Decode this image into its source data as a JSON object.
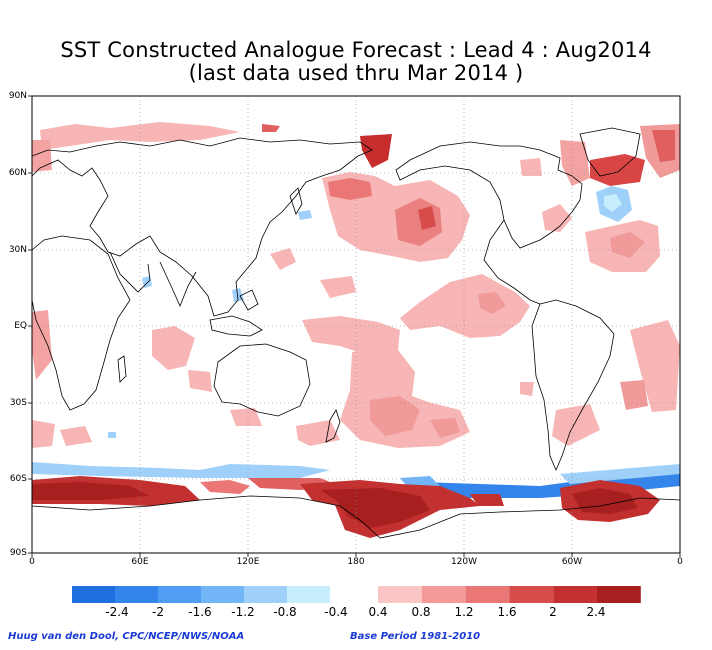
{
  "title_line1": "SST Constructed Analogue Forecast : Lead 4 : Aug2014",
  "title_line2": "(last data used thru Mar 2014 )",
  "lat_labels": [
    "90N",
    "60N",
    "30N",
    "EQ",
    "30S",
    "60S",
    "90S"
  ],
  "lon_labels": [
    "0",
    "60E",
    "120E",
    "180",
    "120W",
    "60W",
    "0"
  ],
  "colorbar": {
    "negative_labels": [
      "-2.4",
      "-2",
      "-1.6",
      "-1.2",
      "-0.8",
      "-0.4"
    ],
    "positive_labels": [
      "0.4",
      "0.8",
      "1.2",
      "1.6",
      "2",
      "2.4"
    ],
    "negative_colors": [
      "#1f6fe0",
      "#3385ec",
      "#4f9ef3",
      "#73b6f7",
      "#9fd0fa",
      "#c8eefd"
    ],
    "positive_colors": [
      "#fbc6c6",
      "#f49a9a",
      "#ea7676",
      "#d94c4c",
      "#c23030",
      "#a81f1f"
    ]
  },
  "credit_left": "Huug van den Dool, CPC/NCEP/NWS/NOAA",
  "credit_right": "Base Period 1981-2010"
}
